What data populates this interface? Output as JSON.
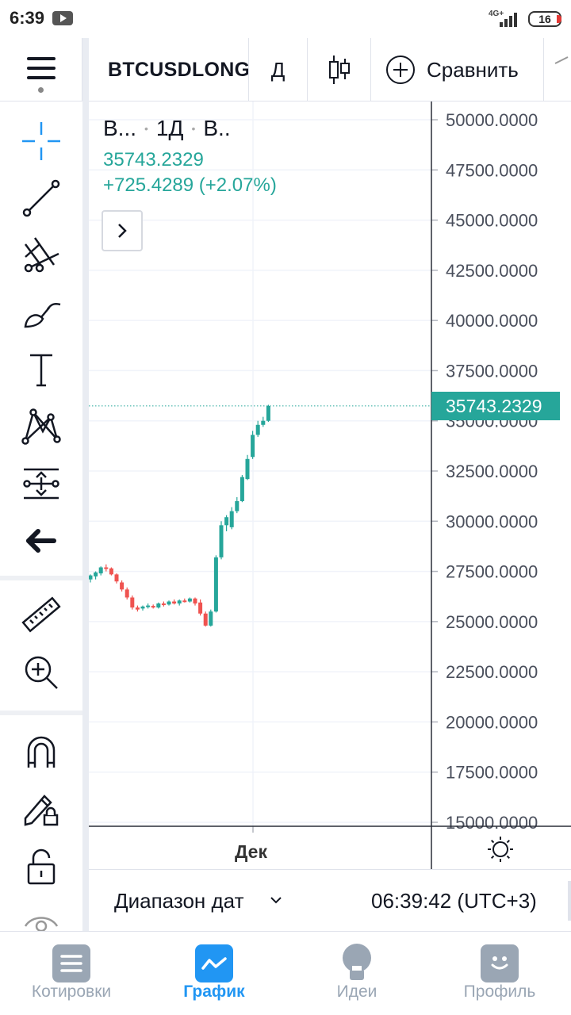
{
  "status_bar": {
    "time": "6:39",
    "network": "4G+",
    "battery": "16"
  },
  "toolbar": {
    "symbol": "BTCUSDLONG",
    "interval": "Д",
    "compare_label": "Сравнить"
  },
  "legend": {
    "symbol_short": "B...",
    "interval": "1Д",
    "exchange_short": "B..",
    "price": "35743.2329",
    "change": "+725.4289 (+2.07%)"
  },
  "price_tag": "35743.2329",
  "time_axis": {
    "label": "Дек"
  },
  "range_bar": {
    "label": "Диапазон дат",
    "clock": "06:39:42 (UTC+3)"
  },
  "bottom_nav": {
    "items": [
      {
        "label": "Котировки",
        "icon": "list-icon",
        "active": false
      },
      {
        "label": "График",
        "icon": "chart-icon",
        "active": true
      },
      {
        "label": "Идеи",
        "icon": "lightbulb-icon",
        "active": false
      },
      {
        "label": "Профиль",
        "icon": "smile-icon",
        "active": false
      }
    ]
  },
  "colors": {
    "up": "#26a69a",
    "down": "#ef5350",
    "accent": "#2196f3"
  },
  "chart_data": {
    "type": "candlestick",
    "ylim": [
      15000,
      50000
    ],
    "yticks": [
      "50000.0000",
      "47500.0000",
      "45000.0000",
      "42500.0000",
      "40000.0000",
      "37500.0000",
      "35000.0000",
      "32500.0000",
      "30000.0000",
      "27500.0000",
      "25000.0000",
      "22500.0000",
      "20000.0000",
      "17500.0000",
      "15000.0000"
    ],
    "xlabel_ticks": [
      "Дек"
    ],
    "last_price": 35743.2329,
    "candles": [
      {
        "o": 27100,
        "h": 27350,
        "l": 26950,
        "c": 27300
      },
      {
        "o": 27250,
        "h": 27500,
        "l": 27100,
        "c": 27450
      },
      {
        "o": 27400,
        "h": 27750,
        "l": 27300,
        "c": 27700
      },
      {
        "o": 27700,
        "h": 27850,
        "l": 27500,
        "c": 27650
      },
      {
        "o": 27650,
        "h": 27700,
        "l": 27300,
        "c": 27350
      },
      {
        "o": 27350,
        "h": 27400,
        "l": 26900,
        "c": 27000
      },
      {
        "o": 26950,
        "h": 27050,
        "l": 26500,
        "c": 26600
      },
      {
        "o": 26600,
        "h": 26700,
        "l": 26100,
        "c": 26200
      },
      {
        "o": 26200,
        "h": 26300,
        "l": 25600,
        "c": 25700
      },
      {
        "o": 25700,
        "h": 25800,
        "l": 25500,
        "c": 25600
      },
      {
        "o": 25650,
        "h": 25800,
        "l": 25550,
        "c": 25750
      },
      {
        "o": 25750,
        "h": 25900,
        "l": 25650,
        "c": 25800
      },
      {
        "o": 25780,
        "h": 25850,
        "l": 25650,
        "c": 25700
      },
      {
        "o": 25700,
        "h": 25950,
        "l": 25650,
        "c": 25900
      },
      {
        "o": 25900,
        "h": 26000,
        "l": 25750,
        "c": 25850
      },
      {
        "o": 25850,
        "h": 26050,
        "l": 25800,
        "c": 26000
      },
      {
        "o": 26000,
        "h": 26100,
        "l": 25850,
        "c": 25900
      },
      {
        "o": 25900,
        "h": 26100,
        "l": 25800,
        "c": 26050
      },
      {
        "o": 26050,
        "h": 26150,
        "l": 25950,
        "c": 26000
      },
      {
        "o": 26000,
        "h": 26200,
        "l": 25950,
        "c": 26150
      },
      {
        "o": 26150,
        "h": 26200,
        "l": 25800,
        "c": 25900
      },
      {
        "o": 25950,
        "h": 26100,
        "l": 25300,
        "c": 25400
      },
      {
        "o": 25400,
        "h": 25500,
        "l": 24750,
        "c": 24800
      },
      {
        "o": 24800,
        "h": 25600,
        "l": 24750,
        "c": 25500
      },
      {
        "o": 25500,
        "h": 28300,
        "l": 25450,
        "c": 28200
      },
      {
        "o": 28200,
        "h": 30000,
        "l": 28100,
        "c": 29800
      },
      {
        "o": 29800,
        "h": 30300,
        "l": 29500,
        "c": 30200
      },
      {
        "o": 29700,
        "h": 30700,
        "l": 29600,
        "c": 30500
      },
      {
        "o": 30500,
        "h": 31200,
        "l": 30400,
        "c": 31000
      },
      {
        "o": 31000,
        "h": 32300,
        "l": 30950,
        "c": 32200
      },
      {
        "o": 32100,
        "h": 33300,
        "l": 32050,
        "c": 33100
      },
      {
        "o": 33200,
        "h": 34500,
        "l": 33100,
        "c": 34300
      },
      {
        "o": 34300,
        "h": 35000,
        "l": 34200,
        "c": 34800
      },
      {
        "o": 34800,
        "h": 35200,
        "l": 34700,
        "c": 35000
      },
      {
        "o": 35000,
        "h": 35800,
        "l": 34950,
        "c": 35743
      }
    ]
  }
}
